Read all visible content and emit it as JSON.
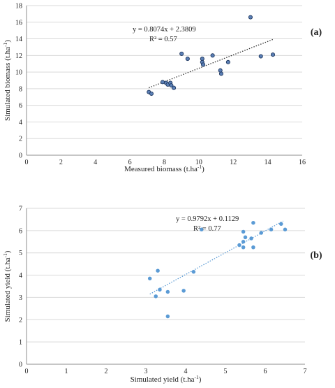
{
  "chart_data": [
    {
      "type": "scatter",
      "panel_label": "(a)",
      "xlabel_main": "Measured biomass  (t.ha",
      "xlabel_sup": "-1",
      "xlabel_end": ")",
      "ylabel_main": "Simulated  biomass  (t.ha",
      "ylabel_sup": "-1",
      "ylabel_end": ")",
      "xlim": [
        0,
        16
      ],
      "ylim": [
        0,
        18
      ],
      "xticks": [
        0,
        2,
        4,
        6,
        8,
        10,
        12,
        14,
        16
      ],
      "yticks": [
        0,
        2,
        4,
        6,
        8,
        10,
        12,
        14,
        16,
        18
      ],
      "grid": "horizontal",
      "marker_color": "#5b7fb5",
      "marker_edge": "#1f3860",
      "trend_color": "#333333",
      "equation": "y = 0.8074x + 2.3809",
      "r2": "R² = 0.57",
      "trendline": {
        "slope": 0.8074,
        "intercept": 2.3809,
        "x_range": [
          7.1,
          14.3
        ]
      },
      "points": [
        [
          7.1,
          7.6
        ],
        [
          7.25,
          7.4
        ],
        [
          7.9,
          8.8
        ],
        [
          8.1,
          8.7
        ],
        [
          8.2,
          8.5
        ],
        [
          8.35,
          8.7
        ],
        [
          8.4,
          8.4
        ],
        [
          8.55,
          8.1
        ],
        [
          9.0,
          12.2
        ],
        [
          9.35,
          11.6
        ],
        [
          10.2,
          11.6
        ],
        [
          10.2,
          11.2
        ],
        [
          10.25,
          10.9
        ],
        [
          10.8,
          12.0
        ],
        [
          11.25,
          10.2
        ],
        [
          11.3,
          9.8
        ],
        [
          11.7,
          11.2
        ],
        [
          13.0,
          16.6
        ],
        [
          13.6,
          11.9
        ],
        [
          14.3,
          12.1
        ]
      ]
    },
    {
      "type": "scatter",
      "panel_label": "(b)",
      "xlabel_main": "Simulated  yield  (t.ha",
      "xlabel_sup": "-1",
      "xlabel_end": ")",
      "ylabel_main": "Simulated  yield  (t.ha",
      "ylabel_sup": "-1",
      "ylabel_end": ")",
      "xlim": [
        0,
        7
      ],
      "ylim": [
        0,
        7
      ],
      "xticks": [
        0,
        1,
        2,
        3,
        4,
        5,
        6,
        7
      ],
      "yticks": [
        0,
        1,
        2,
        3,
        4,
        5,
        6,
        7
      ],
      "grid": "horizontal",
      "marker_color": "#5b9bd5",
      "marker_edge": "#5b9bd5",
      "trend_color": "#5b9bd5",
      "equation": "y = 0.9792x + 0.1129",
      "r2": "R² = 0.77",
      "trendline": {
        "slope": 0.9792,
        "intercept": 0.1129,
        "x_range": [
          3.1,
          6.45
        ]
      },
      "points": [
        [
          3.1,
          3.85
        ],
        [
          3.25,
          3.05
        ],
        [
          3.3,
          4.2
        ],
        [
          3.35,
          3.35
        ],
        [
          3.55,
          3.25
        ],
        [
          3.55,
          2.15
        ],
        [
          3.95,
          3.3
        ],
        [
          4.2,
          4.15
        ],
        [
          4.4,
          6.05
        ],
        [
          5.35,
          5.35
        ],
        [
          5.45,
          5.95
        ],
        [
          5.45,
          5.25
        ],
        [
          5.45,
          5.5
        ],
        [
          5.5,
          5.7
        ],
        [
          5.65,
          5.65
        ],
        [
          5.7,
          5.25
        ],
        [
          5.7,
          6.35
        ],
        [
          5.9,
          5.9
        ],
        [
          6.15,
          6.05
        ],
        [
          6.4,
          6.3
        ],
        [
          6.5,
          6.05
        ]
      ]
    }
  ]
}
